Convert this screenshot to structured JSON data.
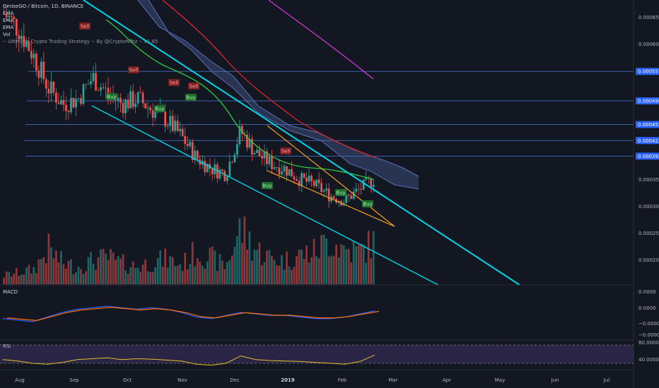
{
  "header": {
    "title": "OmiseGO / Bitcoin, 1D, BINANCE",
    "indicators": [
      "EMA",
      "EMA",
      "EMA",
      "Vol",
      "-- Ultimate Crypto Trading Strategy -- By @CryptoNTez -- v1.85"
    ]
  },
  "panes": {
    "macd_title": "MACD",
    "rsi_title": "RSI"
  },
  "price_axis": {
    "ticks": [
      "0.000650",
      "0.000600",
      "0.000350",
      "0.000300",
      "0.000250",
      "0.000200"
    ],
    "highlighted": [
      "0.000551",
      "0.000496",
      "0.000452",
      "0.000422",
      "0.000393"
    ]
  },
  "macd_axis": {
    "ticks": [
      "0.0000",
      "0.0000",
      "−0.0000",
      "−0.0000"
    ]
  },
  "rsi_axis": {
    "ticks": [
      "80.0000",
      "40.0000"
    ]
  },
  "time_axis": {
    "labels": [
      "Aug",
      "Sep",
      "Oct",
      "Nov",
      "Dec",
      "2019",
      "Feb",
      "Mar",
      "Apr",
      "May",
      "Jun",
      "Jul"
    ]
  },
  "signals": [
    {
      "label": "Sell",
      "type": "sell"
    },
    {
      "label": "Buy",
      "type": "buy"
    },
    {
      "label": "Buy",
      "type": "buy"
    },
    {
      "label": "Sell",
      "type": "sell"
    },
    {
      "label": "Sell",
      "type": "sell"
    },
    {
      "label": "Buy",
      "type": "buy"
    },
    {
      "label": "Sell",
      "type": "sell"
    },
    {
      "label": "Buy",
      "type": "buy"
    },
    {
      "label": "Sell",
      "type": "sell"
    },
    {
      "label": "Buy",
      "type": "buy"
    },
    {
      "label": "Buy",
      "type": "buy"
    }
  ],
  "colors": {
    "background": "#131722",
    "bull": "#26a69a",
    "bear": "#ef5350",
    "trendline": "#00d4e8",
    "wedge": "#f7a21b",
    "ema_fast": "#2ecc40",
    "ema_mid": "#e0252a",
    "ema_slow": "#d03bd6",
    "cloud": "#5b6fb8",
    "level": "#4c7bd9",
    "macd": "#2962ff",
    "signal": "#ff6d00",
    "rsi": "#e6c229",
    "rsi_band": "#7e57c2"
  },
  "chart_data": {
    "type": "line",
    "title": "OmiseGO / Bitcoin, 1D, BINANCE",
    "xlabel": "",
    "ylabel": "",
    "series": [
      {
        "values": [
          0.00066,
          0.00063,
          0.00058,
          0.00052,
          0.00049,
          0.0005,
          0.00054,
          0.00051,
          0.00049,
          0.0005,
          0.00048,
          0.00046,
          0.00043,
          0.00039,
          0.00037,
          0.00036,
          0.00044,
          0.0004,
          0.00038,
          0.00037,
          0.00035,
          0.00034,
          0.00032,
          0.00031,
          0.00033,
          0.00035
        ]
      },
      {
        "name": "Vol",
        "values": [
          6,
          8,
          10,
          24,
          14,
          12,
          16,
          18,
          14,
          12,
          15,
          17,
          13,
          22,
          18,
          12,
          38,
          24,
          18,
          16,
          20,
          22,
          30,
          24,
          22,
          28
        ]
      },
      {
        "name": "MACD",
        "values": [
          -0.3,
          -0.4,
          -0.5,
          -0.2,
          0.1,
          0.3,
          0.4,
          0.5,
          0.4,
          0.3,
          0.4,
          0.3,
          0.1,
          -0.2,
          -0.3,
          -0.1,
          0.1,
          0.0,
          -0.1,
          -0.1,
          -0.2,
          -0.3,
          -0.3,
          -0.2,
          0.0,
          0.2
        ]
      },
      {
        "name": "RSI",
        "values": [
          48,
          45,
          40,
          38,
          42,
          48,
          50,
          52,
          48,
          50,
          49,
          47,
          45,
          38,
          36,
          40,
          56,
          48,
          46,
          45,
          44,
          42,
          40,
          38,
          44,
          58
        ]
      }
    ],
    "y_range": [
      0.00017,
      0.00068
    ],
    "levels": [
      0.000551,
      0.000496,
      0.000452,
      0.000422,
      0.000393
    ],
    "grid": false
  }
}
